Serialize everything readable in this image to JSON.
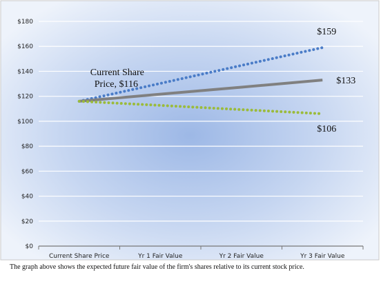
{
  "chart_data": {
    "type": "line",
    "categories": [
      "Current Share Price",
      "Yr 1 Fair Value",
      "Yr 2 Fair Value",
      "Yr 3 Fair Value"
    ],
    "ylim": [
      0,
      180
    ],
    "yticks": [
      0,
      20,
      40,
      60,
      80,
      100,
      120,
      140,
      160,
      180
    ],
    "ytick_labels": [
      "$0",
      "$20",
      "$40",
      "$60",
      "$80",
      "$100",
      "$120",
      "$140",
      "$160",
      "$180"
    ],
    "grid": true,
    "series": [
      {
        "values": [
          116,
          130.3,
          144.7,
          159
        ],
        "color": "#4a7cc7",
        "style": "dotted"
      },
      {
        "values": [
          116,
          121.7,
          127.3,
          133
        ],
        "color": "#808080",
        "style": "solid"
      },
      {
        "values": [
          116,
          112.7,
          109.3,
          106
        ],
        "color": "#9bbb3b",
        "style": "dotted"
      }
    ],
    "annotations": [
      {
        "text": "Current Share",
        "x": 0,
        "y": 116
      },
      {
        "text": "Price, $116",
        "x": 0,
        "y": 116
      },
      {
        "text": "$159",
        "x": 3,
        "y": 159
      },
      {
        "text": "$133",
        "x": 3,
        "y": 133
      },
      {
        "text": "$106",
        "x": 3,
        "y": 106
      }
    ]
  },
  "caption": "The graph above shows the expected future fair value of the firm's shares relative to its current stock price."
}
